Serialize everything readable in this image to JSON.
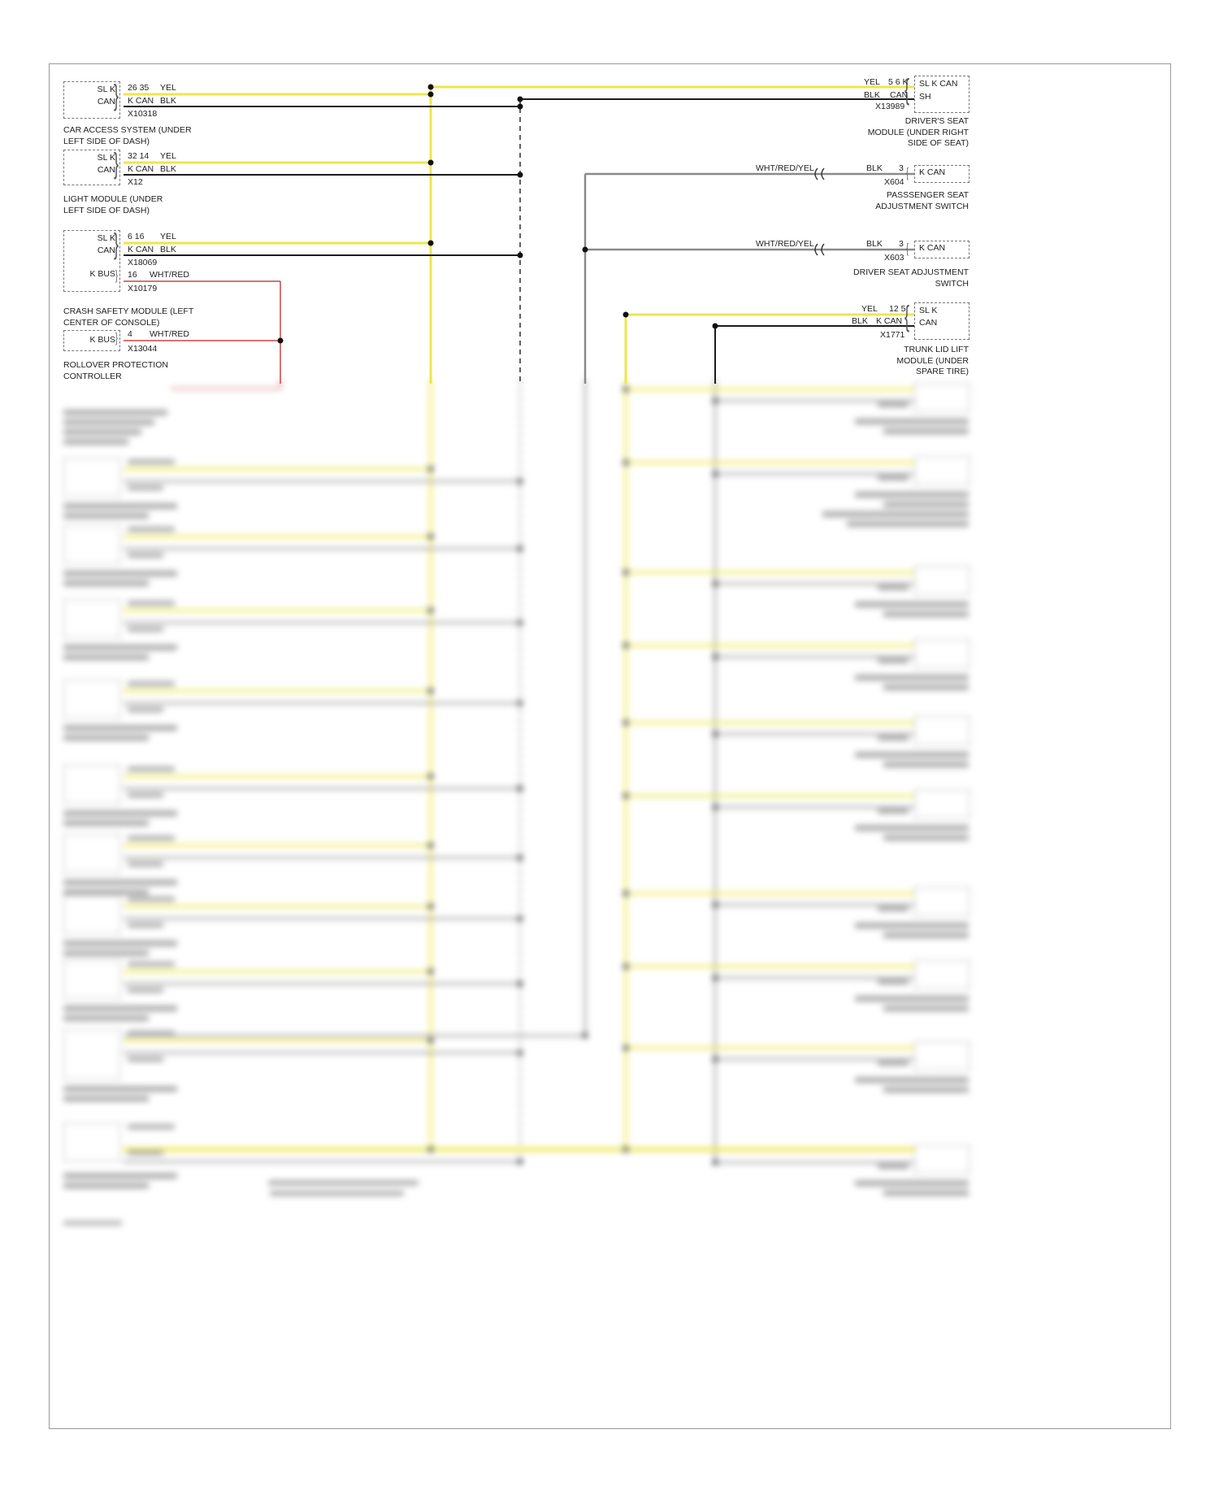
{
  "diagram": {
    "bus_system": "K-CAN",
    "kind": "automotive wiring diagram"
  },
  "colors": {
    "yellow_wire": "#ece74b",
    "black_wire": "#1c1c1c",
    "gray_wire": "#8a8a8a",
    "red_wire": "#c64747",
    "box_border": "#777777"
  },
  "icons": {
    "brace_right": "}",
    "brace_left": "{"
  },
  "left_modules": [
    {
      "box_line1": "SL K",
      "box_line2": "CAN",
      "row1_pin": "26 35",
      "row1_color": "YEL",
      "row2_pin": "K CAN",
      "row2_color": "BLK",
      "connector": "X10318",
      "caption": "CAR ACCESS SYSTEM (UNDER\nLEFT SIDE OF DASH)"
    },
    {
      "box_line1": "SL K",
      "box_line2": "CAN",
      "row1_pin": "32 14",
      "row1_color": "YEL",
      "row2_pin": "K CAN",
      "row2_color": "BLK",
      "connector": "X12",
      "caption": "LIGHT MODULE (UNDER\nLEFT SIDE OF DASH)"
    },
    {
      "box_line1": "SL K",
      "box_line2": "CAN",
      "box_line3": "K BUS",
      "row1_pin": "6 16",
      "row1_color": "YEL",
      "row2_pin": "K CAN",
      "row2_color": "BLK",
      "connector": "X18069",
      "row3_pin": "16",
      "row3_color": "WHT/RED",
      "connector2": "X10179",
      "caption": "CRASH SAFETY MODULE (LEFT\nCENTER OF CONSOLE)"
    },
    {
      "box_line1": "K BUS",
      "row1_pin": "4",
      "row1_color": "WHT/RED",
      "connector": "X13044",
      "caption": "ROLLOVER PROTECTION\nCONTROLLER"
    }
  ],
  "right_modules": [
    {
      "box_line1": "SL K CAN",
      "box_line2": "SH",
      "row1_color": "YEL",
      "row1_pin": "5 6 K",
      "row2_color": "BLK",
      "row2_pin": "CAN",
      "connector": "X13989",
      "caption": "DRIVER'S SEAT\nMODULE (UNDER RIGHT\nSIDE OF SEAT)"
    },
    {
      "box_line1": "K CAN",
      "wire_color": "WHT/RED/YEL",
      "wire_color2": "BLK",
      "pin": "3",
      "connector": "X604",
      "caption": "PASSSENGER SEAT\nADJUSTMENT SWITCH"
    },
    {
      "box_line1": "K CAN",
      "wire_color": "WHT/RED/YEL",
      "wire_color2": "BLK",
      "pin": "3",
      "connector": "X603",
      "caption": "DRIVER SEAT ADJUSTMENT\nSWITCH"
    },
    {
      "box_line1": "SL K",
      "box_line2": "CAN",
      "row1_color": "YEL",
      "row1_pin": "12 5",
      "row2_color": "BLK",
      "row2_pin": "K CAN",
      "connector": "X1771",
      "caption": "TRUNK LID LIFT\nMODULE (UNDER\nSPARE TIRE)"
    }
  ]
}
